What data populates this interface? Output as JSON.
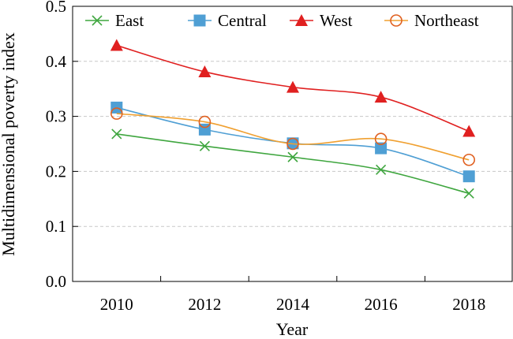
{
  "chart_data": {
    "type": "line",
    "x": [
      2010,
      2012,
      2014,
      2016,
      2018
    ],
    "xticks": [
      "2010",
      "2012",
      "2014",
      "2016",
      "2018"
    ],
    "xlim": [
      2009,
      2019
    ],
    "ylim": [
      0,
      0.5
    ],
    "yticks": [
      "0.0",
      "0.1",
      "0.2",
      "0.3",
      "0.4",
      "0.5"
    ],
    "xlabel": "Year",
    "ylabel": "Multidimensional poverty index",
    "grid": "horizontal dashed",
    "legend_position": "top",
    "series": [
      {
        "name": "East",
        "values": [
          0.268,
          0.246,
          0.226,
          0.203,
          0.16
        ],
        "color": "#3fa63f",
        "marker": "x"
      },
      {
        "name": "Central",
        "values": [
          0.316,
          0.276,
          0.251,
          0.242,
          0.191
        ],
        "color": "#4f9fd4",
        "marker": "square"
      },
      {
        "name": "West",
        "values": [
          0.429,
          0.381,
          0.353,
          0.335,
          0.273
        ],
        "color": "#e02020",
        "marker": "triangle"
      },
      {
        "name": "Northeast",
        "values": [
          0.305,
          0.29,
          0.25,
          0.259,
          0.221
        ],
        "color": "#f0a030",
        "marker": "circle",
        "marker_color": "#e06020"
      }
    ]
  }
}
